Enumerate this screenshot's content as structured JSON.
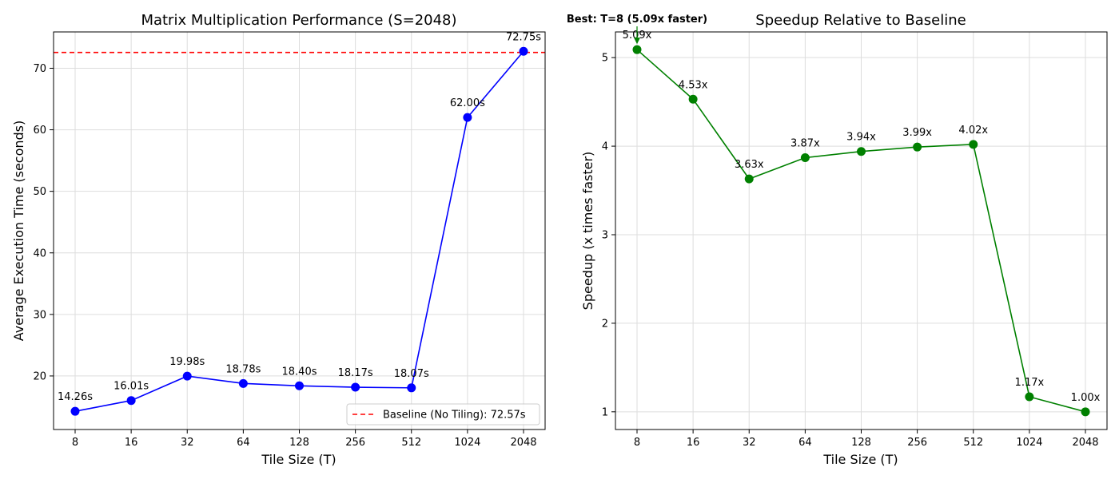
{
  "chart_data": [
    {
      "type": "line",
      "title": "Matrix Multiplication Performance (S=2048)",
      "xlabel": "Tile Size (T)",
      "ylabel": "Average Execution Time (seconds)",
      "categories": [
        "8",
        "16",
        "32",
        "64",
        "128",
        "256",
        "512",
        "1024",
        "2048"
      ],
      "series": [
        {
          "values": [
            14.26,
            16.01,
            19.98,
            18.78,
            18.4,
            18.17,
            18.07,
            62.0,
            72.75
          ],
          "color": "#0000ff"
        }
      ],
      "data_labels": [
        "14.26s",
        "16.01s",
        "19.98s",
        "18.78s",
        "18.40s",
        "18.17s",
        "18.07s",
        "62.00s",
        "72.75s"
      ],
      "baseline": {
        "value": 72.57,
        "label": "Baseline (No Tiling): 72.57s",
        "color": "#ff0000",
        "style": "dashed"
      },
      "yticks": [
        20,
        30,
        40,
        50,
        60,
        70
      ],
      "ylim": [
        11.3,
        75.9
      ],
      "grid": true,
      "legend_position": "lower-right"
    },
    {
      "type": "line",
      "title": "Speedup Relative to Baseline",
      "xlabel": "Tile Size (T)",
      "ylabel": "Speedup (x times faster)",
      "categories": [
        "8",
        "16",
        "32",
        "64",
        "128",
        "256",
        "512",
        "1024",
        "2048"
      ],
      "series": [
        {
          "values": [
            5.09,
            4.53,
            3.63,
            3.87,
            3.94,
            3.99,
            4.02,
            1.17,
            1.0
          ],
          "color": "#008000"
        }
      ],
      "data_labels": [
        "5.09x",
        "4.53x",
        "3.63x",
        "3.87x",
        "3.94x",
        "3.99x",
        "4.02x",
        "1.17x",
        "1.00x"
      ],
      "annotation": {
        "text": "Best: T=8 (5.09x faster)",
        "target_index": 0
      },
      "yticks": [
        1,
        2,
        3,
        4,
        5
      ],
      "ylim": [
        0.8,
        5.29
      ],
      "grid": true
    }
  ]
}
